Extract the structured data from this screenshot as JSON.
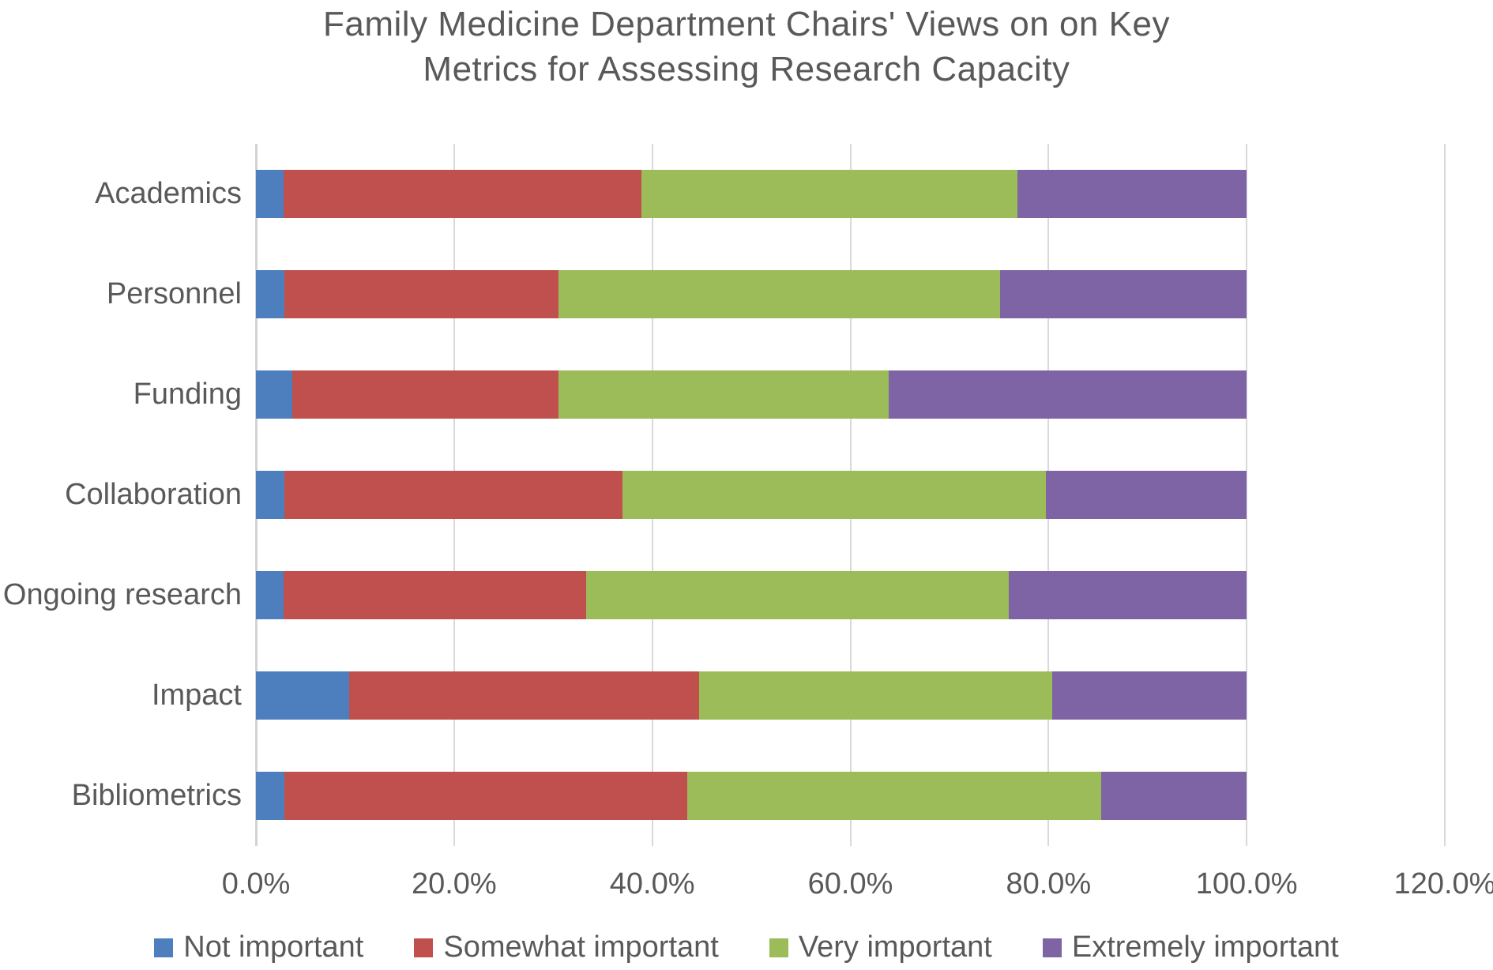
{
  "title": {
    "line1": "Family Medicine Department Chairs' Views on on Key",
    "line2": "Metrics for Assessing Research Capacity"
  },
  "colors": {
    "grid": "#D9D9D9",
    "axis_line": "#D3D3D3",
    "text": "#595959",
    "background": "#FFFFFF"
  },
  "chart_data": {
    "type": "bar",
    "orientation": "horizontal",
    "stacked": true,
    "title": "Family Medicine Department Chairs' Views on on Key Metrics for Assessing Research Capacity",
    "categories": [
      "Academics",
      "Personnel",
      "Funding",
      "Collaboration",
      "Ongoing research",
      "Impact",
      "Bibliometrics"
    ],
    "series": [
      {
        "name": "Not important",
        "color": "#4D7EBD",
        "values": [
          2.8,
          2.9,
          3.7,
          2.9,
          2.8,
          9.4,
          2.9
        ]
      },
      {
        "name": "Somewhat important",
        "color": "#C0504D",
        "values": [
          36.1,
          27.6,
          26.8,
          34.1,
          30.5,
          35.3,
          40.6
        ]
      },
      {
        "name": "Very important",
        "color": "#9CBB59",
        "values": [
          38.0,
          44.6,
          33.4,
          42.7,
          42.7,
          35.7,
          41.8
        ]
      },
      {
        "name": "Extremely important",
        "color": "#7E64A5",
        "values": [
          23.1,
          24.9,
          36.1,
          20.3,
          24.0,
          19.6,
          14.7
        ]
      }
    ],
    "x_axis": {
      "min": 0,
      "max": 120,
      "tick_step": 20,
      "ticks": [
        {
          "value": 0,
          "label": "0.0%"
        },
        {
          "value": 20,
          "label": "20.0%"
        },
        {
          "value": 40,
          "label": "40.0%"
        },
        {
          "value": 60,
          "label": "60.0%"
        },
        {
          "value": 80,
          "label": "80.0%"
        },
        {
          "value": 100,
          "label": "100.0%"
        },
        {
          "value": 120,
          "label": "120.0%"
        }
      ]
    },
    "grid": "vertical",
    "legend_position": "bottom"
  }
}
